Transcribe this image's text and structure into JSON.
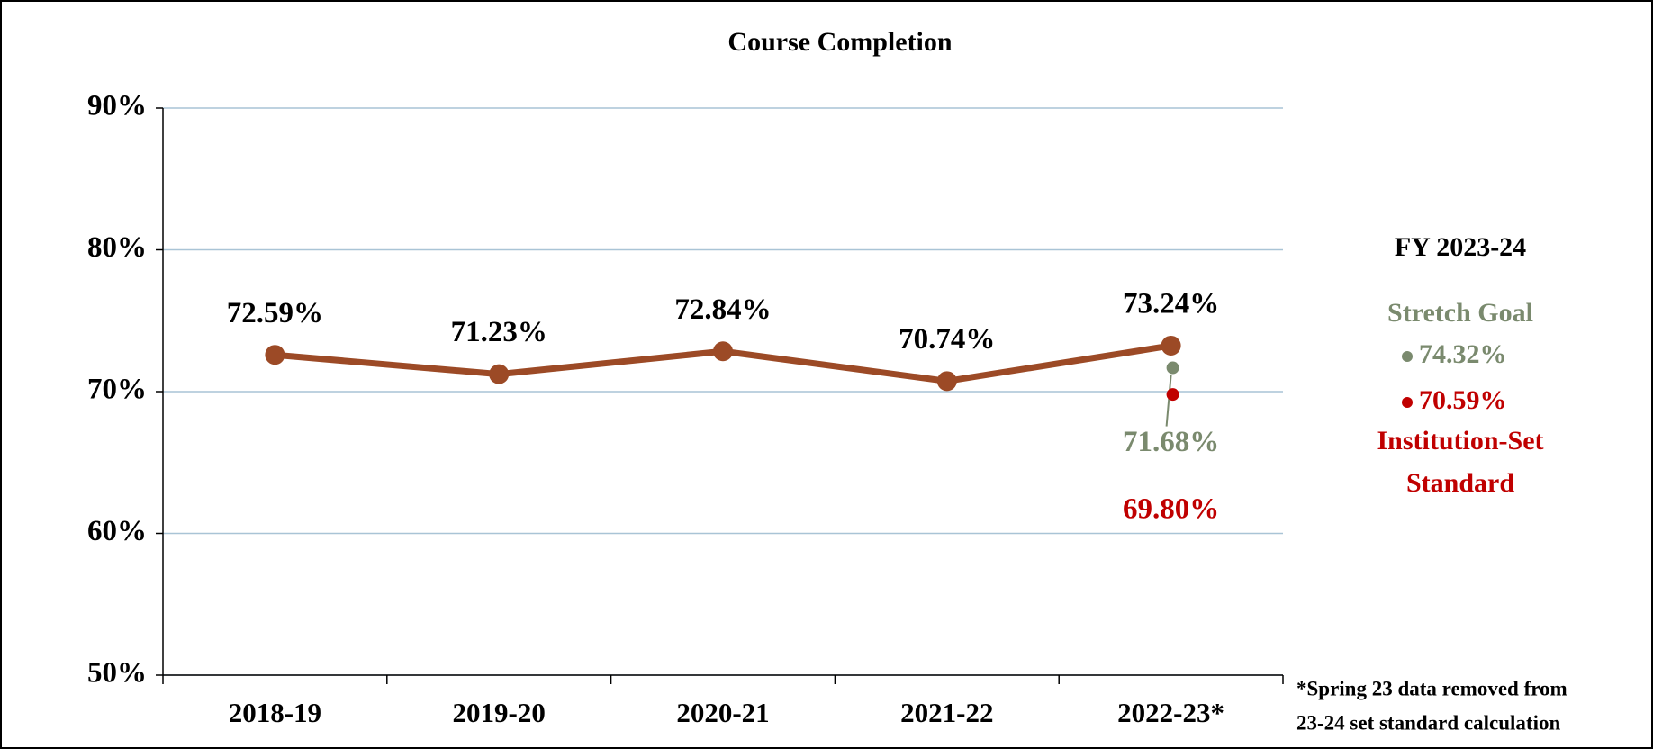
{
  "chart_data": {
    "type": "line",
    "title": "Course Completion",
    "categories": [
      "2018-19",
      "2019-20",
      "2020-21",
      "2021-22",
      "2022-23*"
    ],
    "series": [
      {
        "color": "#9c4a26",
        "values": [
          72.59,
          71.23,
          72.84,
          70.74,
          73.24
        ],
        "value_labels": [
          "72.59%",
          "71.23%",
          "72.84%",
          "70.74%",
          "73.24%"
        ]
      },
      {
        "color": "#7a8a6e",
        "values": [
          null,
          null,
          null,
          null,
          71.68
        ],
        "value_labels": [
          null,
          null,
          null,
          null,
          "71.68%"
        ]
      },
      {
        "color": "#c00000",
        "values": [
          null,
          null,
          null,
          null,
          69.8
        ],
        "value_labels": [
          null,
          null,
          null,
          null,
          "69.80%"
        ]
      }
    ],
    "ylim": [
      50,
      90
    ],
    "yticks": [
      {
        "value": 50,
        "label": "50%"
      },
      {
        "value": 60,
        "label": "60%"
      },
      {
        "value": 70,
        "label": "70%"
      },
      {
        "value": 80,
        "label": "80%"
      },
      {
        "value": 90,
        "label": "90%"
      }
    ],
    "grid": true,
    "targets_title": "FY 2023-24",
    "targets": [
      {
        "name": "Stretch Goal",
        "value": 74.32,
        "label": "74.32%",
        "color": "#7a8a6e"
      },
      {
        "name": "Institution-Set Standard",
        "value": 70.59,
        "label": "70.59%",
        "color": "#c00000"
      }
    ],
    "footnote": [
      "*Spring 23 data removed from",
      "23-24 set standard calculation"
    ]
  }
}
